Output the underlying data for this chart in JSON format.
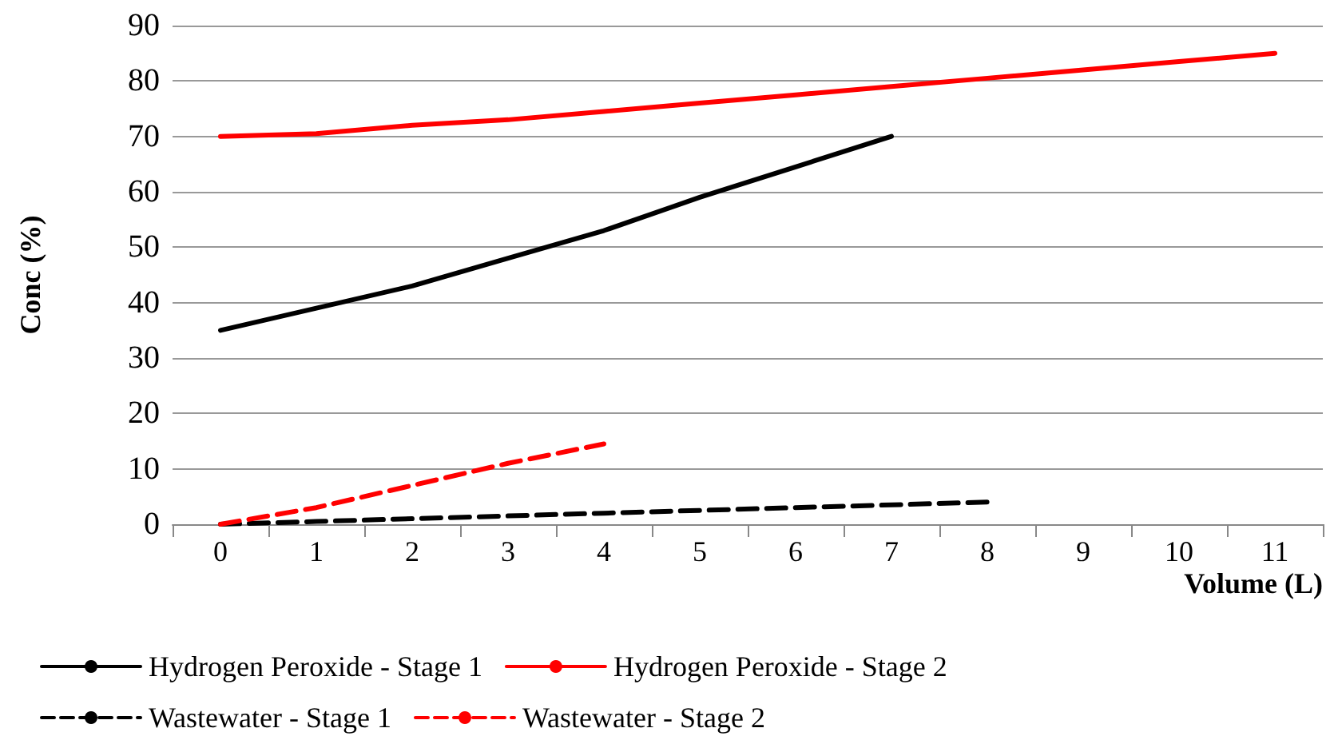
{
  "chart_data": {
    "type": "line",
    "xlabel": "Volume (L)",
    "ylabel": "Conc (%)",
    "categories": [
      "0",
      "1",
      "2",
      "3",
      "4",
      "5",
      "6",
      "7",
      "8",
      "9",
      "10",
      "11"
    ],
    "series": [
      {
        "name": "Hydrogen Peroxide - Stage 1",
        "color": "#000000",
        "line_style": "solid",
        "values": [
          35,
          39,
          43,
          48,
          53,
          59,
          64.5,
          70,
          null,
          null,
          null,
          null
        ]
      },
      {
        "name": "Hydrogen Peroxide - Stage 2",
        "color": "#ff0000",
        "line_style": "solid",
        "values": [
          70,
          70.5,
          72,
          73,
          74.5,
          76,
          77.5,
          79,
          80.5,
          82,
          83.5,
          85
        ]
      },
      {
        "name": "Wastewater - Stage 1",
        "color": "#000000",
        "line_style": "dashed",
        "values": [
          0,
          0.5,
          1,
          1.5,
          2,
          2.5,
          3,
          3.5,
          4,
          null,
          null,
          null
        ]
      },
      {
        "name": "Wastewater - Stage 2",
        "color": "#ff0000",
        "line_style": "dashed",
        "values": [
          0,
          3,
          7,
          11,
          14.5,
          null,
          null,
          null,
          null,
          null,
          null,
          null
        ]
      }
    ],
    "ylim": [
      0,
      90
    ],
    "yticks": [
      0,
      10,
      20,
      30,
      40,
      50,
      60,
      70,
      80,
      90
    ],
    "grid": "y",
    "legend": "bottom",
    "marker": "none"
  }
}
